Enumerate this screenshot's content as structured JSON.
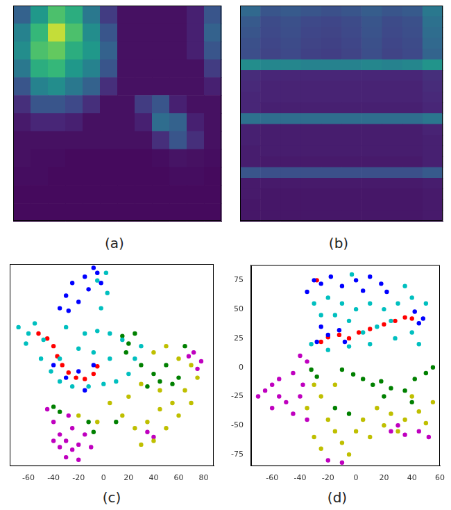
{
  "chart_data": [
    {
      "type": "heatmap",
      "title": "(a)",
      "tick_labels": false,
      "color_range": [
        0,
        1
      ],
      "cells": [
        [
          0.35,
          0.6,
          0.8,
          0.7,
          0.45,
          0.2,
          0.05,
          0.05,
          0.05,
          0.05,
          0.1,
          0.3
        ],
        [
          0.5,
          0.75,
          0.95,
          0.8,
          0.55,
          0.3,
          0.05,
          0.05,
          0.05,
          0.05,
          0.1,
          0.35
        ],
        [
          0.55,
          0.8,
          0.85,
          0.7,
          0.6,
          0.35,
          0.05,
          0.05,
          0.05,
          0.05,
          0.1,
          0.3
        ],
        [
          0.45,
          0.7,
          0.75,
          0.6,
          0.5,
          0.3,
          0.05,
          0.05,
          0.05,
          0.05,
          0.05,
          0.2
        ],
        [
          0.3,
          0.5,
          0.55,
          0.45,
          0.35,
          0.15,
          0.05,
          0.05,
          0.05,
          0.05,
          0.05,
          0.1
        ],
        [
          0.15,
          0.3,
          0.3,
          0.25,
          0.15,
          0.05,
          0.05,
          0.2,
          0.3,
          0.1,
          0.05,
          0.05
        ],
        [
          0.08,
          0.12,
          0.12,
          0.1,
          0.05,
          0.05,
          0.05,
          0.1,
          0.4,
          0.35,
          0.1,
          0.05
        ],
        [
          0.05,
          0.05,
          0.05,
          0.05,
          0.05,
          0.05,
          0.05,
          0.05,
          0.15,
          0.3,
          0.15,
          0.05
        ],
        [
          0.05,
          0.04,
          0.04,
          0.03,
          0.03,
          0.03,
          0.03,
          0.03,
          0.04,
          0.06,
          0.05,
          0.04
        ],
        [
          0.04,
          0.04,
          0.03,
          0.03,
          0.03,
          0.03,
          0.03,
          0.03,
          0.03,
          0.04,
          0.04,
          0.03
        ],
        [
          0.03,
          0.03,
          0.03,
          0.03,
          0.03,
          0.03,
          0.03,
          0.03,
          0.03,
          0.03,
          0.03,
          0.03
        ],
        [
          0.03,
          0.03,
          0.03,
          0.03,
          0.03,
          0.03,
          0.03,
          0.03,
          0.03,
          0.03,
          0.03,
          0.03
        ]
      ]
    },
    {
      "type": "heatmap",
      "title": "(b)",
      "tick_labels": false,
      "color_range": [
        0,
        1
      ],
      "cells": [
        [
          0.38,
          0.3,
          0.32,
          0.3,
          0.28,
          0.3,
          0.33,
          0.3,
          0.32,
          0.45
        ],
        [
          0.32,
          0.26,
          0.28,
          0.25,
          0.24,
          0.26,
          0.3,
          0.26,
          0.28,
          0.42
        ],
        [
          0.3,
          0.25,
          0.27,
          0.24,
          0.23,
          0.25,
          0.29,
          0.25,
          0.27,
          0.4
        ],
        [
          0.28,
          0.24,
          0.26,
          0.23,
          0.22,
          0.24,
          0.28,
          0.24,
          0.26,
          0.38
        ],
        [
          0.27,
          0.23,
          0.25,
          0.22,
          0.21,
          0.23,
          0.27,
          0.23,
          0.25,
          0.36
        ],
        [
          0.55,
          0.52,
          0.52,
          0.5,
          0.5,
          0.5,
          0.52,
          0.5,
          0.52,
          0.58
        ],
        [
          0.14,
          0.12,
          0.12,
          0.12,
          0.12,
          0.12,
          0.12,
          0.12,
          0.12,
          0.15
        ],
        [
          0.13,
          0.11,
          0.11,
          0.11,
          0.11,
          0.11,
          0.11,
          0.11,
          0.11,
          0.14
        ],
        [
          0.12,
          0.11,
          0.11,
          0.11,
          0.11,
          0.11,
          0.11,
          0.11,
          0.11,
          0.13
        ],
        [
          0.12,
          0.1,
          0.1,
          0.1,
          0.1,
          0.1,
          0.1,
          0.1,
          0.1,
          0.12
        ],
        [
          0.42,
          0.4,
          0.4,
          0.4,
          0.4,
          0.4,
          0.4,
          0.4,
          0.4,
          0.44
        ],
        [
          0.1,
          0.09,
          0.09,
          0.09,
          0.09,
          0.09,
          0.09,
          0.09,
          0.09,
          0.11
        ],
        [
          0.1,
          0.09,
          0.09,
          0.09,
          0.09,
          0.09,
          0.09,
          0.09,
          0.09,
          0.1
        ],
        [
          0.09,
          0.09,
          0.09,
          0.09,
          0.09,
          0.09,
          0.09,
          0.09,
          0.09,
          0.1
        ],
        [
          0.09,
          0.08,
          0.08,
          0.08,
          0.08,
          0.08,
          0.08,
          0.08,
          0.08,
          0.1
        ],
        [
          0.3,
          0.28,
          0.28,
          0.28,
          0.28,
          0.28,
          0.28,
          0.28,
          0.28,
          0.32
        ],
        [
          0.08,
          0.08,
          0.08,
          0.08,
          0.08,
          0.08,
          0.08,
          0.08,
          0.08,
          0.09
        ],
        [
          0.08,
          0.07,
          0.07,
          0.07,
          0.07,
          0.07,
          0.07,
          0.07,
          0.07,
          0.08
        ],
        [
          0.07,
          0.07,
          0.07,
          0.07,
          0.07,
          0.07,
          0.07,
          0.07,
          0.07,
          0.08
        ],
        [
          0.07,
          0.07,
          0.07,
          0.07,
          0.07,
          0.07,
          0.07,
          0.07,
          0.07,
          0.08
        ]
      ]
    },
    {
      "type": "scatter",
      "title": "(c)",
      "grid": false,
      "tick_labels": "x",
      "marker": "circle",
      "xlim": [
        -75,
        88
      ],
      "xticks": [
        -60,
        -40,
        -20,
        0,
        20,
        40,
        60,
        80
      ],
      "ylim": [
        -75,
        85
      ],
      "series": [
        {
          "color": "#00bfbf",
          "x": [
            -68,
            -60,
            -55,
            -48,
            -62,
            -50,
            -42,
            -35,
            -25,
            -12,
            0,
            10,
            20,
            25,
            15,
            5,
            -5,
            -15,
            -20,
            -8,
            5,
            30,
            -30,
            -2,
            3,
            -5,
            2,
            -35
          ],
          "values": [
            35,
            30,
            38,
            25,
            22,
            10,
            0,
            -8,
            -12,
            -12,
            -10,
            -8,
            -2,
            10,
            25,
            30,
            32,
            30,
            18,
            15,
            10,
            20,
            35,
            50,
            62,
            72,
            78,
            10
          ]
        },
        {
          "color": "#0000ff",
          "x": [
            -30,
            -25,
            -15,
            -8,
            -5,
            -20,
            -35,
            -28,
            -12,
            -2,
            -40,
            -30,
            -15,
            -8,
            -20
          ],
          "values": [
            60,
            70,
            75,
            82,
            78,
            55,
            50,
            48,
            65,
            70,
            5,
            -5,
            -15,
            5,
            0
          ]
        },
        {
          "color": "#008000",
          "x": [
            15,
            20,
            25,
            18,
            30,
            40,
            45,
            55,
            60,
            50,
            65,
            35,
            -40,
            -35,
            -12,
            -8,
            10
          ],
          "values": [
            28,
            22,
            30,
            15,
            5,
            -2,
            -8,
            -10,
            -5,
            5,
            20,
            -12,
            -28,
            -32,
            -40,
            -48,
            -40
          ]
        },
        {
          "color": "#bfbf00",
          "x": [
            40,
            50,
            60,
            70,
            75,
            65,
            55,
            45,
            35,
            25,
            15,
            5,
            20,
            30,
            45,
            60,
            40,
            30,
            -5,
            -20,
            50,
            70
          ],
          "values": [
            15,
            20,
            10,
            5,
            -5,
            -15,
            -25,
            -30,
            -40,
            -45,
            -35,
            -25,
            -20,
            -10,
            -15,
            -35,
            -55,
            -58,
            -40,
            -35,
            -45,
            -25
          ]
        },
        {
          "color": "#bf00bf",
          "x": [
            -45,
            -40,
            -35,
            -30,
            -25,
            -20,
            -15,
            -25,
            -35,
            -30,
            -20,
            -10,
            -40,
            -28,
            35,
            40,
            72,
            78,
            75,
            68
          ],
          "values": [
            -30,
            -40,
            -50,
            -55,
            -62,
            -58,
            -50,
            -45,
            -60,
            -68,
            -70,
            -60,
            -55,
            -35,
            -48,
            -52,
            15,
            8,
            2,
            12
          ]
        },
        {
          "color": "#ff0000",
          "x": [
            -52,
            -45,
            -40,
            -37,
            -33,
            -28,
            -22,
            -15,
            -8,
            -5
          ],
          "values": [
            30,
            26,
            20,
            12,
            5,
            -1,
            -5,
            -6,
            -2,
            4
          ]
        }
      ]
    },
    {
      "type": "scatter",
      "title": "(d)",
      "grid": false,
      "marker": "circle",
      "xlim": [
        -75,
        60
      ],
      "xticks": [
        -60,
        -40,
        -20,
        0,
        20,
        40,
        60
      ],
      "ylim": [
        -85,
        88
      ],
      "yticks": [
        -75,
        -50,
        -25,
        0,
        25,
        50,
        75
      ],
      "series": [
        {
          "color": "#00bfbf",
          "x": [
            -30,
            -20,
            -10,
            0,
            10,
            20,
            30,
            40,
            50,
            35,
            25,
            15,
            5,
            -5,
            -15,
            -25,
            -32,
            -20,
            -5,
            10,
            28,
            40,
            -3,
            45
          ],
          "values": [
            55,
            60,
            55,
            50,
            55,
            50,
            55,
            60,
            55,
            70,
            40,
            35,
            30,
            40,
            45,
            45,
            20,
            15,
            18,
            20,
            25,
            30,
            80,
            20
          ]
        },
        {
          "color": "#0000ff",
          "x": [
            -30,
            -25,
            -18,
            -10,
            0,
            10,
            18,
            22,
            -35,
            5,
            -25,
            -20,
            -12,
            -8,
            -28,
            42,
            48,
            45
          ],
          "values": [
            75,
            72,
            78,
            70,
            75,
            78,
            72,
            65,
            65,
            66,
            35,
            28,
            32,
            22,
            22,
            48,
            42,
            38
          ]
        },
        {
          "color": "#ff0000",
          "x": [
            -25,
            -20,
            -12,
            -5,
            2,
            10,
            20,
            28,
            35,
            40,
            -28
          ],
          "values": [
            22,
            26,
            28,
            25,
            30,
            33,
            37,
            40,
            43,
            42,
            75
          ]
        },
        {
          "color": "#008000",
          "x": [
            -10,
            -2,
            5,
            12,
            18,
            25,
            35,
            42,
            50,
            55,
            -32,
            -28,
            40,
            20,
            -15,
            -5
          ],
          "values": [
            -2,
            -6,
            -10,
            -15,
            -12,
            -18,
            -20,
            -10,
            -5,
            0,
            -2,
            -8,
            -30,
            -25,
            -35,
            -40
          ]
        },
        {
          "color": "#bfbf00",
          "x": [
            -30,
            -25,
            -35,
            -20,
            -15,
            -10,
            -5,
            -25,
            0,
            5,
            15,
            25,
            35,
            45,
            55,
            50,
            30,
            10,
            -30,
            -15,
            40,
            20
          ],
          "values": [
            -15,
            -25,
            -35,
            -45,
            -55,
            -65,
            -75,
            -70,
            -55,
            -45,
            -35,
            -40,
            -45,
            -38,
            -30,
            -48,
            -55,
            -60,
            -60,
            -15,
            -25,
            -50
          ]
        },
        {
          "color": "#bf00bf",
          "x": [
            -40,
            -35,
            -45,
            -55,
            -60,
            -65,
            -70,
            -55,
            -50,
            -40,
            -45,
            -35,
            -60,
            -38,
            25,
            35,
            45,
            52,
            30,
            -20,
            -10
          ],
          "values": [
            10,
            5,
            -5,
            -10,
            -15,
            -20,
            -25,
            -25,
            -30,
            -25,
            -40,
            -45,
            -35,
            -15,
            -55,
            -58,
            -55,
            -60,
            -50,
            -80,
            -82
          ]
        }
      ]
    }
  ]
}
